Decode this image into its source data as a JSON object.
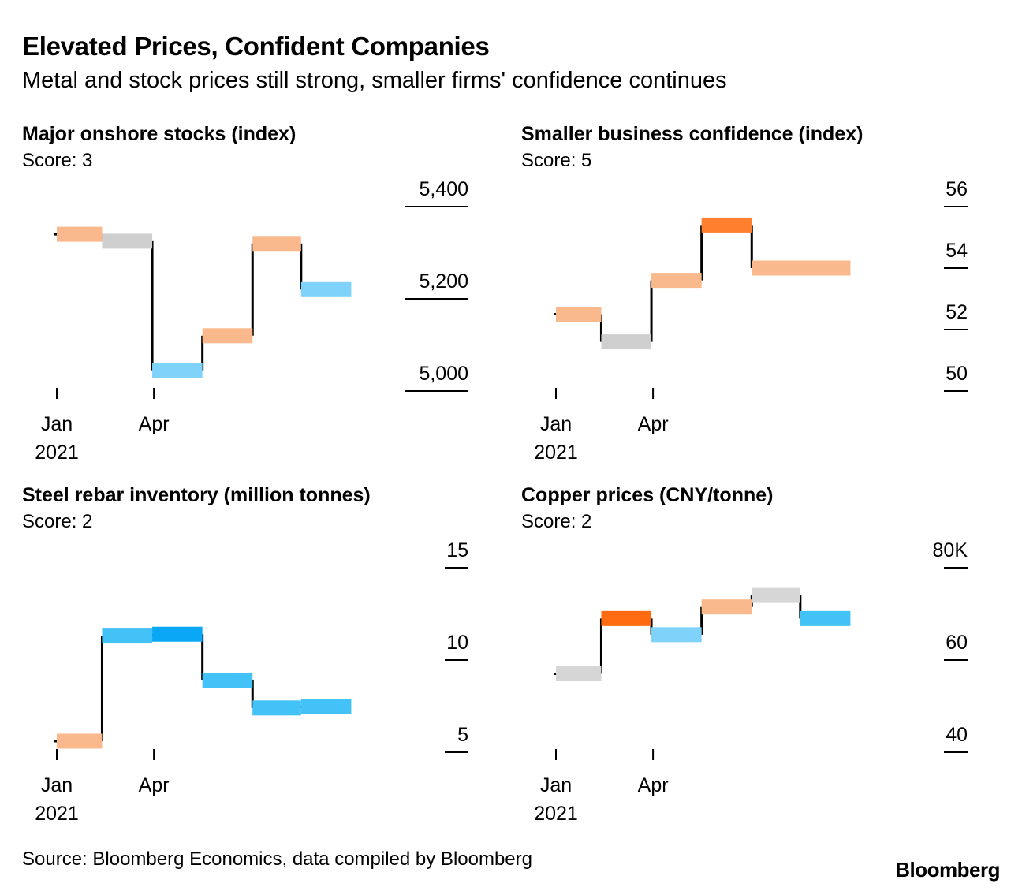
{
  "header": {
    "title": "Elevated Prices, Confident Companies",
    "subtitle": "Metal and stock prices still strong, smaller firms' confidence continues"
  },
  "footer": {
    "source": "Source: Bloomberg Economics, data compiled by Bloomberg",
    "brand": "Bloomberg"
  },
  "score_colors": {
    "1": "#0aa7f7",
    "2": "#43c2f8",
    "3": "#cfcfcf",
    "4": "#fab98c",
    "5": "#ff6b10"
  },
  "chart_data": [
    {
      "type": "step",
      "title": "Major onshore stocks (index)",
      "score_label": "Score:",
      "score": 3,
      "x_ticks": [
        {
          "label": "Jan",
          "month": 0
        },
        {
          "label": "Apr",
          "month": 3
        }
      ],
      "x_year": "2021",
      "y_ticks": [
        {
          "value": 5000,
          "label": "5,000"
        },
        {
          "value": 5200,
          "label": "5,200"
        },
        {
          "value": 5400,
          "label": "5,400"
        }
      ],
      "ylim": [
        5000,
        5400
      ],
      "xlim": [
        0,
        11
      ],
      "segments": [
        {
          "start": 0,
          "end": 1.4,
          "value": 5340,
          "color": "#fab98c"
        },
        {
          "start": 1.4,
          "end": 2.95,
          "value": 5325,
          "color": "#cfcfcf"
        },
        {
          "start": 2.95,
          "end": 4.5,
          "value": 5045,
          "color": "#7fd3fa"
        },
        {
          "start": 4.5,
          "end": 6.05,
          "value": 5120,
          "color": "#fab98c"
        },
        {
          "start": 6.05,
          "end": 7.55,
          "value": 5320,
          "color": "#fab98c"
        },
        {
          "start": 7.55,
          "end": 9.1,
          "value": 5220,
          "color": "#7fd3fa"
        }
      ]
    },
    {
      "type": "step",
      "title": "Smaller business confidence (index)",
      "score_label": "Score:",
      "score": 5,
      "x_ticks": [
        {
          "label": "Jan",
          "month": 0
        },
        {
          "label": "Apr",
          "month": 3
        }
      ],
      "x_year": "2021",
      "y_ticks": [
        {
          "value": 50,
          "label": "50"
        },
        {
          "value": 52,
          "label": "52"
        },
        {
          "value": 54,
          "label": "54"
        },
        {
          "value": 56,
          "label": "56"
        }
      ],
      "ylim": [
        50,
        56
      ],
      "xlim": [
        0,
        11
      ],
      "segments": [
        {
          "start": 0,
          "end": 1.4,
          "value": 52.5,
          "color": "#fab98c"
        },
        {
          "start": 1.4,
          "end": 2.95,
          "value": 51.6,
          "color": "#cfcfcf"
        },
        {
          "start": 2.95,
          "end": 4.5,
          "value": 53.6,
          "color": "#fab98c"
        },
        {
          "start": 4.5,
          "end": 6.05,
          "value": 55.4,
          "color": "#ff7f2e"
        },
        {
          "start": 6.05,
          "end": 9.1,
          "value": 54.0,
          "color": "#fab98c"
        }
      ]
    },
    {
      "type": "step",
      "title": "Steel rebar inventory (million tonnes)",
      "score_label": "Score:",
      "score": 2,
      "x_ticks": [
        {
          "label": "Jan",
          "month": 0
        },
        {
          "label": "Apr",
          "month": 3
        }
      ],
      "x_year": "2021",
      "y_ticks": [
        {
          "value": 5,
          "label": "5"
        },
        {
          "value": 10,
          "label": "10"
        },
        {
          "value": 15,
          "label": "15"
        }
      ],
      "ylim": [
        5,
        15
      ],
      "xlim": [
        0,
        11
      ],
      "segments": [
        {
          "start": 0,
          "end": 1.4,
          "value": 5.6,
          "color": "#fab98c"
        },
        {
          "start": 1.4,
          "end": 2.95,
          "value": 11.3,
          "color": "#43c2f8"
        },
        {
          "start": 2.95,
          "end": 4.5,
          "value": 11.4,
          "color": "#0aa7f7"
        },
        {
          "start": 4.5,
          "end": 6.05,
          "value": 8.9,
          "color": "#43c2f8"
        },
        {
          "start": 6.05,
          "end": 7.55,
          "value": 7.4,
          "color": "#43c2f8"
        },
        {
          "start": 7.55,
          "end": 9.1,
          "value": 7.5,
          "color": "#43c2f8"
        }
      ]
    },
    {
      "type": "step",
      "title": "Copper prices (CNY/tonne)",
      "score_label": "Score:",
      "score": 2,
      "x_ticks": [
        {
          "label": "Jan",
          "month": 0
        },
        {
          "label": "Apr",
          "month": 3
        }
      ],
      "x_year": "2021",
      "y_ticks": [
        {
          "value": 40,
          "label": "40"
        },
        {
          "value": 60,
          "label": "60"
        },
        {
          "value": 80,
          "label": "80K"
        }
      ],
      "ylim": [
        40,
        80
      ],
      "xlim": [
        0,
        11
      ],
      "segments": [
        {
          "start": 0,
          "end": 1.4,
          "value": 57.0,
          "color": "#d6d6d6"
        },
        {
          "start": 1.4,
          "end": 2.95,
          "value": 69.0,
          "color": "#ff6b10"
        },
        {
          "start": 2.95,
          "end": 4.5,
          "value": 65.5,
          "color": "#7fd3fa"
        },
        {
          "start": 4.5,
          "end": 6.05,
          "value": 71.5,
          "color": "#fab98c"
        },
        {
          "start": 6.05,
          "end": 7.55,
          "value": 74.0,
          "color": "#d6d6d6"
        },
        {
          "start": 7.55,
          "end": 9.1,
          "value": 69.0,
          "color": "#43c2f8"
        }
      ]
    }
  ]
}
